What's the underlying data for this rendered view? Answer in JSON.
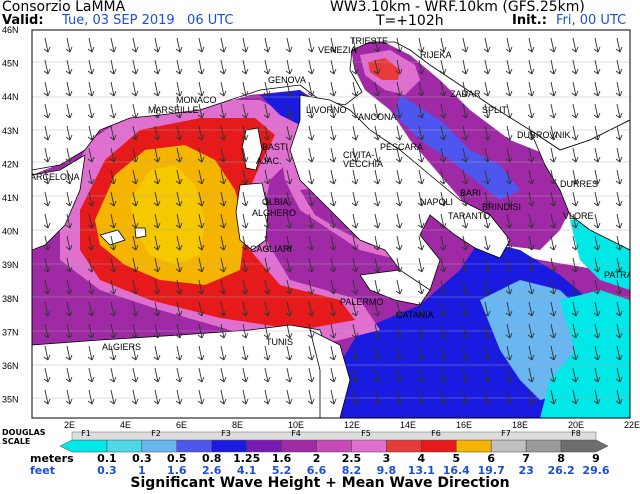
{
  "header": {
    "org": "Consorzio LaMMA",
    "valid_label": "Valid:",
    "valid_value": "Tue, 03 SEP 2019   06 UTC",
    "model": "WW3.10km - WRF.10km (GFS.25km)",
    "lead": "T=+102h",
    "init_label": "Init.:",
    "init_value": "Fri, 00 UTC"
  },
  "axes": {
    "lat_labels": [
      "46N",
      "45N",
      "44N",
      "43N",
      "42N",
      "41N",
      "40N",
      "39N",
      "38N",
      "37N",
      "36N",
      "35N"
    ],
    "lon_labels": [
      "2E",
      "4E",
      "6E",
      "8E",
      "10E",
      "12E",
      "14E",
      "16E",
      "18E",
      "20E",
      "22E"
    ]
  },
  "cities": {
    "venezia": "VENEZIA",
    "trieste": "TRIESTE",
    "rijeka": "RIJEKA",
    "genova": "GENOVA",
    "monaco": "MONACO",
    "marseille": "MARSEILLE",
    "zadar": "ZADAR",
    "livorno": "LIVORNO",
    "ancona": "ANCONA",
    "split": "SPLIT",
    "dubrovnik": "DUBROVNIK",
    "bastia": "BASTI",
    "ajaccio": "AJAC.",
    "pescara": "PESCARA",
    "civitavecchia_1": "CIVITA-",
    "civitavecchia_2": "VECCHIA",
    "barcelona": "BARCELONA",
    "durres": "DURRES",
    "bari": "BARI",
    "olbia": "OLBIA",
    "alghero": "ALGHERO",
    "napoli": "NAPOLI",
    "taranto": "TARANTO",
    "brindisi": "BRINDISI",
    "vlore": "VLORE",
    "cagliari": "CAGLIARI",
    "patras": "PATRAS",
    "palermo": "PALERMO",
    "catania": "CATANIA",
    "tunis": "TUNIS",
    "algiers": "ALGIERS"
  },
  "legend": {
    "douglas_label": "DOUGLAS\nSCALE",
    "douglas": [
      "F1",
      "F2",
      "F3",
      "F4",
      "F5",
      "F6",
      "F7",
      "F8"
    ],
    "meters_label": "meters",
    "meters": [
      "0.1",
      "0.3",
      "0.5",
      "0.8",
      "1.25",
      "1.6",
      "2",
      "2.5",
      "3",
      "4",
      "5",
      "6",
      "7",
      "8",
      "9"
    ],
    "feet_label": "feet",
    "feet": [
      "0.3",
      "1",
      "1.6",
      "2.6",
      "4.1",
      "5.2",
      "6.6",
      "8.2",
      "9.8",
      "13.1",
      "16.4",
      "19.7",
      "23",
      "26.2",
      "29.6"
    ],
    "colors": [
      "#00e8e8",
      "#4dd9e8",
      "#6ab6f0",
      "#4d57f0",
      "#1a1ae0",
      "#7a1ab4",
      "#a02aa6",
      "#c84ab8",
      "#e070d0",
      "#e83a3a",
      "#e61a1a",
      "#f5b400",
      "#c0c0c0",
      "#9a9a9a",
      "#6e6e6e"
    ],
    "title": "Significant Wave Height + Mean Wave Direction"
  }
}
